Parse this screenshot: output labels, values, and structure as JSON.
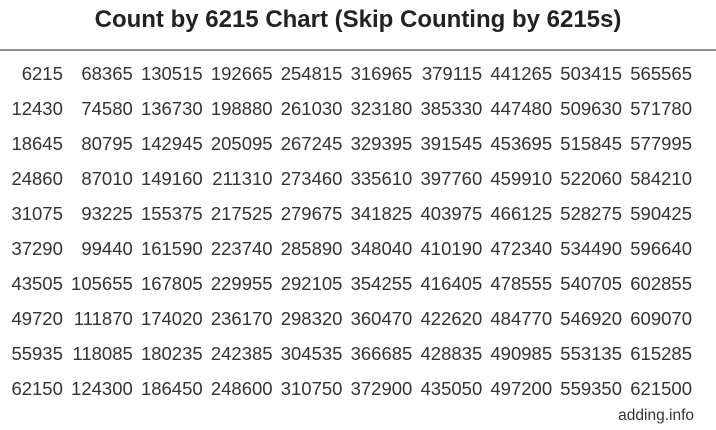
{
  "page": {
    "title": "Count by 6215 Chart (Skip Counting by 6215s)",
    "footer_text": "adding.info"
  },
  "colors": {
    "title": "#222222",
    "number_text": "#333333",
    "rule": "#909090",
    "background": "#ffffff"
  },
  "chart_data": {
    "type": "table",
    "title": "Count by 6215 Chart (Skip Counting by 6215s)",
    "step": 6215,
    "layout": "10 rows x 10 columns, values increase by 6215 down each column",
    "rows": [
      [
        "6215",
        "68365",
        "130515",
        "192665",
        "254815",
        "316965",
        "379115",
        "441265",
        "503415",
        "565565"
      ],
      [
        "12430",
        "74580",
        "136730",
        "198880",
        "261030",
        "323180",
        "385330",
        "447480",
        "509630",
        "571780"
      ],
      [
        "18645",
        "80795",
        "142945",
        "205095",
        "267245",
        "329395",
        "391545",
        "453695",
        "515845",
        "577995"
      ],
      [
        "24860",
        "87010",
        "149160",
        "211310",
        "273460",
        "335610",
        "397760",
        "459910",
        "522060",
        "584210"
      ],
      [
        "31075",
        "93225",
        "155375",
        "217525",
        "279675",
        "341825",
        "403975",
        "466125",
        "528275",
        "590425"
      ],
      [
        "37290",
        "99440",
        "161590",
        "223740",
        "285890",
        "348040",
        "410190",
        "472340",
        "534490",
        "596640"
      ],
      [
        "43505",
        "105655",
        "167805",
        "229955",
        "292105",
        "354255",
        "416405",
        "478555",
        "540705",
        "602855"
      ],
      [
        "49720",
        "111870",
        "174020",
        "236170",
        "298320",
        "360470",
        "422620",
        "484770",
        "546920",
        "609070"
      ],
      [
        "55935",
        "118085",
        "180235",
        "242385",
        "304535",
        "366685",
        "428835",
        "490985",
        "553135",
        "615285"
      ],
      [
        "62150",
        "124300",
        "186450",
        "248600",
        "310750",
        "372900",
        "435050",
        "497200",
        "559350",
        "621500"
      ]
    ]
  }
}
